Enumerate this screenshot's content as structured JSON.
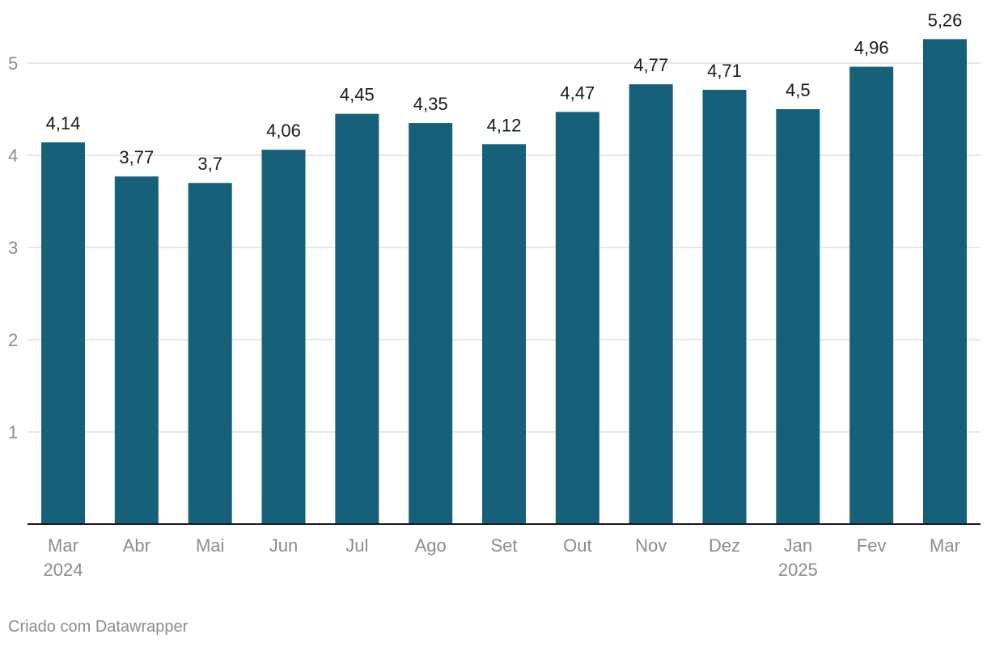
{
  "chart_data": {
    "type": "bar",
    "title": "",
    "xlabel": "",
    "ylabel": "",
    "categories": [
      "Mar",
      "Abr",
      "Mai",
      "Jun",
      "Jul",
      "Ago",
      "Set",
      "Out",
      "Nov",
      "Dez",
      "Jan",
      "Fev",
      "Mar"
    ],
    "category_sublabels": [
      "2024",
      "",
      "",
      "",
      "",
      "",
      "",
      "",
      "",
      "",
      "2025",
      "",
      ""
    ],
    "values": [
      4.14,
      3.77,
      3.7,
      4.06,
      4.45,
      4.35,
      4.12,
      4.47,
      4.77,
      4.71,
      4.5,
      4.96,
      5.26
    ],
    "value_labels": [
      "4,14",
      "3,77",
      "3,7",
      "4,06",
      "4,45",
      "4,35",
      "4,12",
      "4,47",
      "4,77",
      "4,71",
      "4,5",
      "4,96",
      "5,26"
    ],
    "ylim": [
      0,
      5
    ],
    "yticks": [
      1,
      2,
      3,
      4,
      5
    ],
    "grid": true,
    "legend": "none",
    "bar_color": "#176079"
  },
  "footer": {
    "credit": "Criado com Datawrapper"
  }
}
